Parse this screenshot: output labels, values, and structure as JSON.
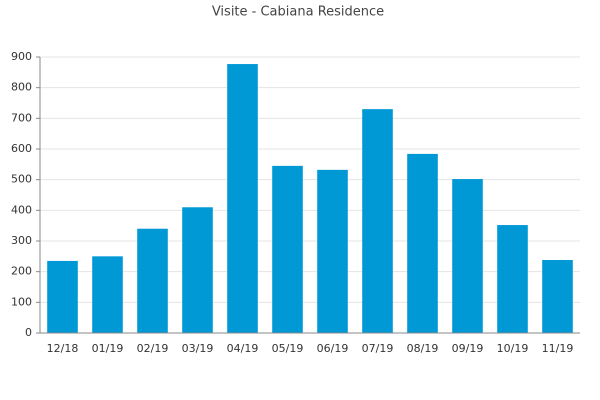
{
  "chart_data": {
    "type": "bar",
    "title": "Visite - Cabiana Residence",
    "categories": [
      "12/18",
      "01/19",
      "02/19",
      "03/19",
      "04/19",
      "05/19",
      "06/19",
      "07/19",
      "08/19",
      "09/19",
      "10/19",
      "11/19"
    ],
    "values": [
      235,
      250,
      340,
      410,
      877,
      545,
      532,
      730,
      584,
      502,
      352,
      238
    ],
    "color": "#0099d6",
    "ylim": [
      0,
      900
    ],
    "yticks": [
      0,
      100,
      200,
      300,
      400,
      500,
      600,
      700,
      800,
      900
    ],
    "grid": true
  }
}
